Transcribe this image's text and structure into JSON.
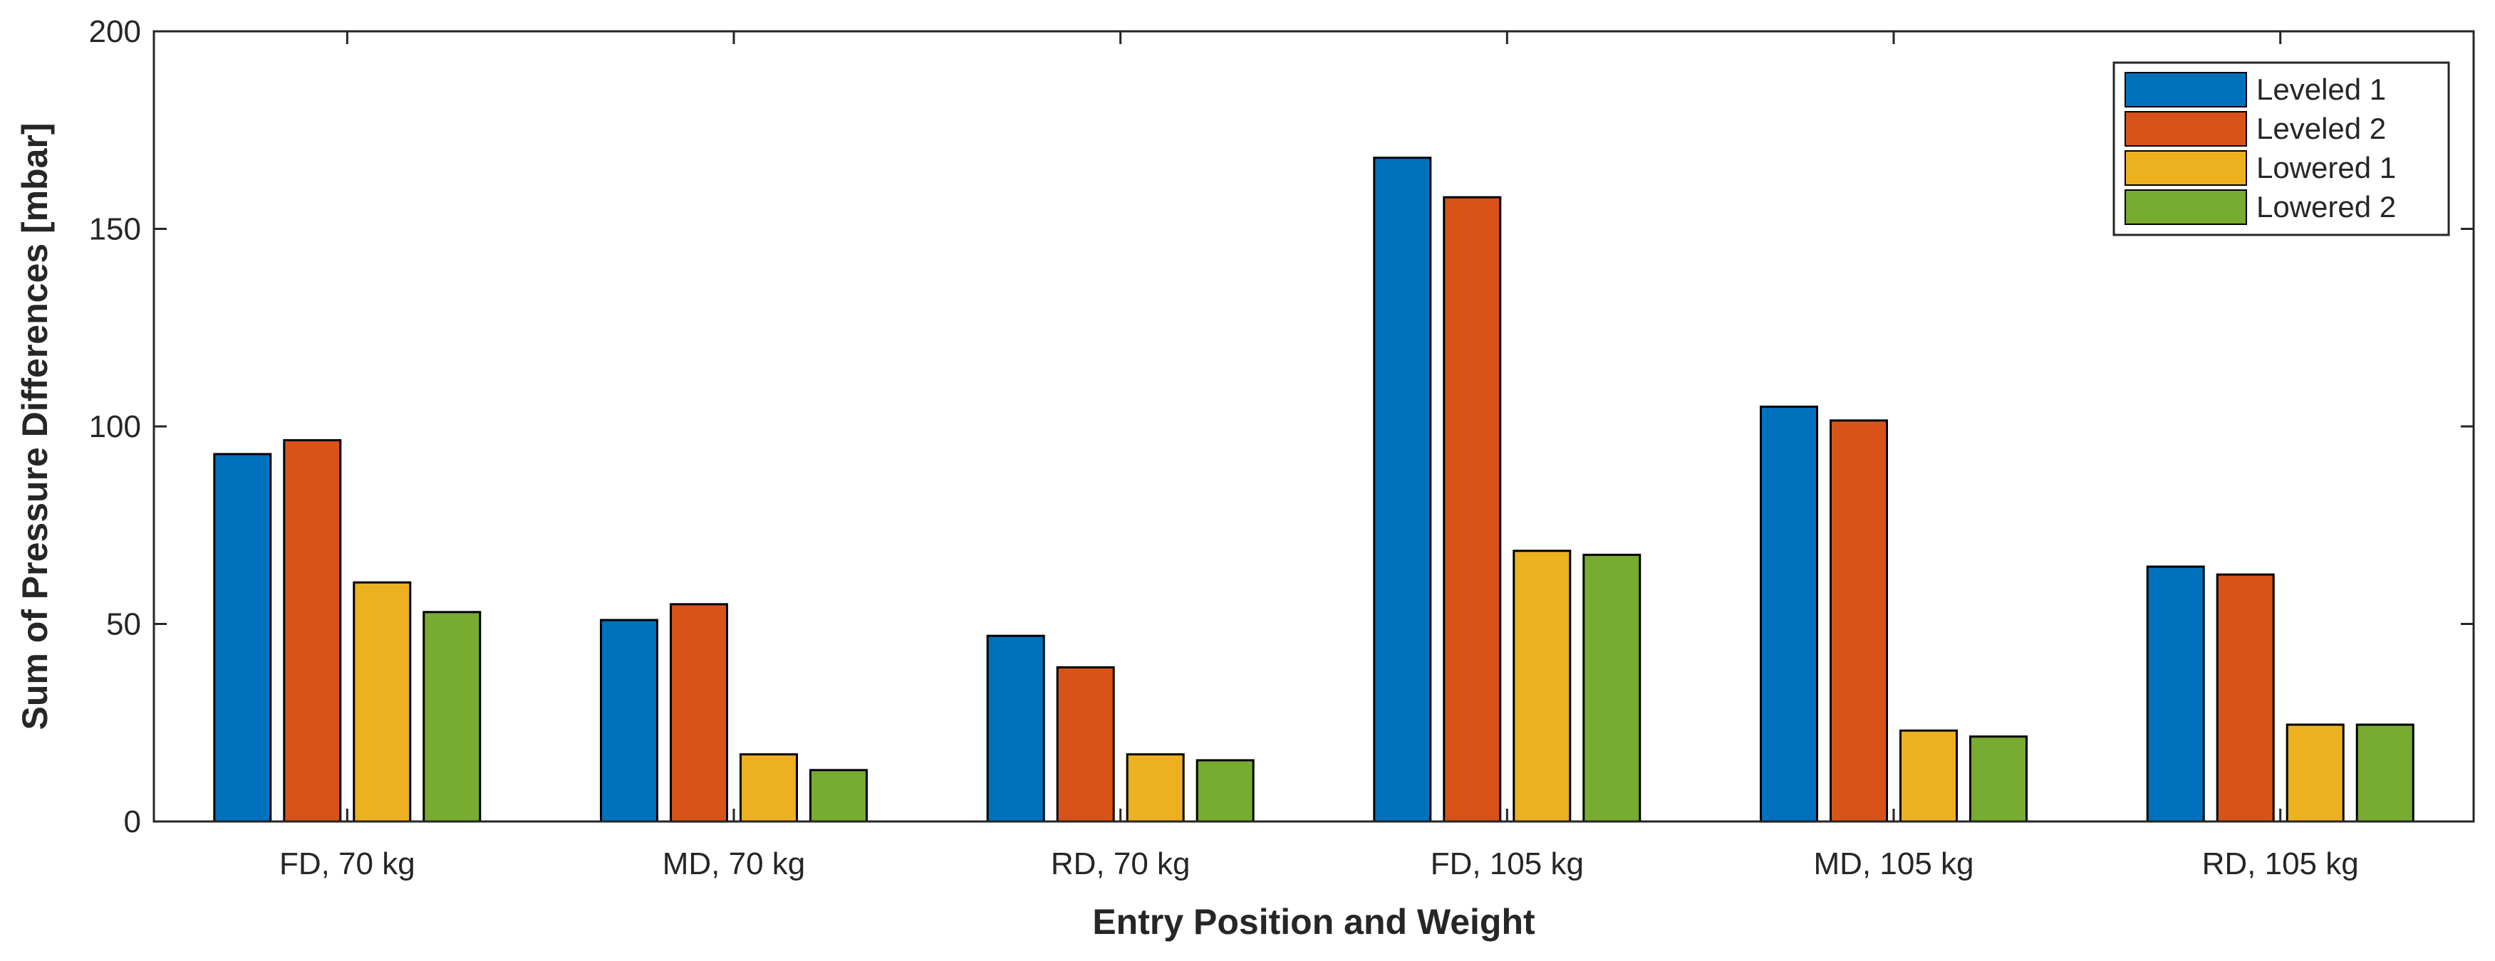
{
  "chart_data": {
    "type": "bar",
    "title": "",
    "xlabel": "Entry Position and Weight",
    "ylabel": "Sum of Pressure Differences [mbar]",
    "ylim": [
      0,
      200
    ],
    "yticks": [
      0,
      50,
      100,
      150,
      200
    ],
    "categories": [
      "FD, 70 kg",
      "MD, 70 kg",
      "RD, 70 kg",
      "FD, 105 kg",
      "MD, 105 kg",
      "RD, 105 kg"
    ],
    "series": [
      {
        "name": "Leveled 1",
        "color": "#0072BD",
        "values": [
          93,
          51,
          47,
          168,
          105,
          64.5
        ]
      },
      {
        "name": "Leveled 2",
        "color": "#D95319",
        "values": [
          96.5,
          55,
          39,
          158,
          101.5,
          62.5
        ]
      },
      {
        "name": "Lowered 1",
        "color": "#EDB120",
        "values": [
          60.5,
          17,
          17,
          68.5,
          23,
          24.5
        ]
      },
      {
        "name": "Lowered 2",
        "color": "#77AC30",
        "values": [
          53,
          13,
          15.5,
          67.5,
          21.5,
          24.5
        ]
      }
    ],
    "legend_position": "top-right",
    "grid": false
  }
}
